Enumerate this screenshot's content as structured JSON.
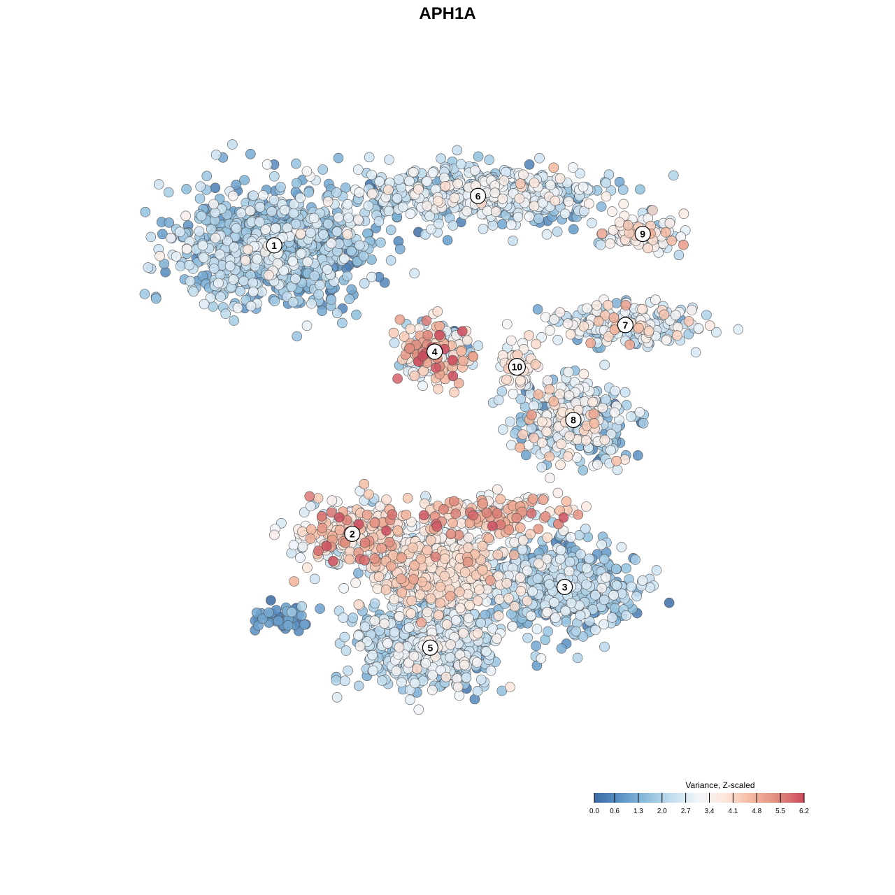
{
  "chart_data": {
    "type": "scatter",
    "title": "APH1A",
    "xlabel": "",
    "ylabel": "",
    "grid": false,
    "axes_visible": false,
    "point_style": {
      "fill_by": "value",
      "stroke": "#555555",
      "opacity": 0.85
    },
    "colorbar": {
      "title": "Variance, Z-scaled",
      "min": 0.0,
      "max": 6.2,
      "ticks": [
        "0.0",
        "0.6",
        "1.3",
        "2.0",
        "2.7",
        "3.4",
        "4.1",
        "4.8",
        "5.5",
        "6.2"
      ],
      "colors": [
        "#3b6ba5",
        "#5b93c6",
        "#8ebfdd",
        "#c6dff0",
        "#f2f6fa",
        "#fde6da",
        "#f4b79e",
        "#e08a7c",
        "#cc4c5e"
      ],
      "placement": "bottom-right"
    },
    "clusters": [
      {
        "label": "1",
        "x": -44,
        "y": 38,
        "spread": [
          20,
          15
        ],
        "points": 850,
        "mean": 1.7,
        "sd": 0.75
      },
      {
        "label": "6",
        "x": 3,
        "y": 51,
        "spread": [
          26,
          7
        ],
        "points": 600,
        "mean": 2.2,
        "sd": 0.8
      },
      {
        "label": "9",
        "x": 41,
        "y": 41,
        "spread": [
          8,
          4
        ],
        "points": 110,
        "mean": 3.1,
        "sd": 0.8
      },
      {
        "label": "7",
        "x": 37,
        "y": 17,
        "spread": [
          15,
          5
        ],
        "points": 240,
        "mean": 2.6,
        "sd": 0.9
      },
      {
        "label": "4",
        "x": -7,
        "y": 10,
        "spread": [
          8,
          7
        ],
        "points": 190,
        "mean": 3.5,
        "sd": 1.5
      },
      {
        "label": "10",
        "x": 12,
        "y": 6,
        "spread": [
          4,
          5
        ],
        "points": 50,
        "mean": 3.4,
        "sd": 0.5
      },
      {
        "label": "8",
        "x": 25,
        "y": -8,
        "spread": [
          12,
          10
        ],
        "points": 320,
        "mean": 2.3,
        "sd": 1.1
      },
      {
        "label": "2",
        "x": -26,
        "y": -38,
        "spread": [
          12,
          8
        ],
        "points": 260,
        "mean": 3.8,
        "sd": 1.1
      },
      {
        "label": "3",
        "x": 23,
        "y": -52,
        "spread": [
          14,
          10
        ],
        "points": 480,
        "mean": 1.7,
        "sd": 0.7
      },
      {
        "label": "5",
        "x": -8,
        "y": -68,
        "spread": [
          15,
          10
        ],
        "points": 560,
        "mean": 2.1,
        "sd": 0.7
      },
      {
        "label": "",
        "x": -6,
        "y": -48,
        "spread": [
          15,
          10
        ],
        "points": 700,
        "mean": 3.0,
        "sd": 0.8
      },
      {
        "label": "",
        "x": 6,
        "y": -33,
        "spread": [
          18,
          5
        ],
        "points": 160,
        "mean": 4.1,
        "sd": 1.0
      },
      {
        "label": "",
        "x": -42,
        "y": -60,
        "spread": [
          6,
          3
        ],
        "points": 45,
        "mean": 0.7,
        "sd": 0.5
      }
    ],
    "xlim": [
      -75,
      75
    ],
    "ylim": [
      -100,
      75
    ]
  }
}
